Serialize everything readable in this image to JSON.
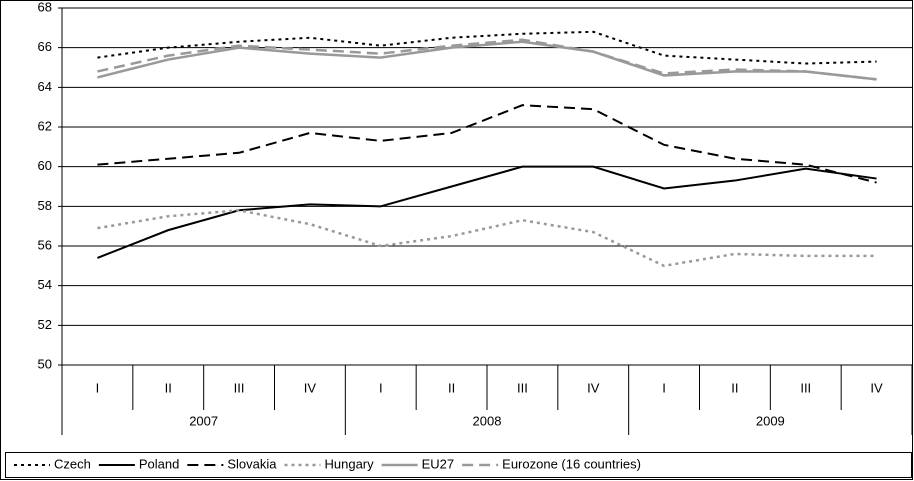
{
  "chart_data": {
    "type": "line",
    "categories": [
      "I",
      "II",
      "III",
      "IV",
      "I",
      "II",
      "III",
      "IV",
      "I",
      "II",
      "III",
      "IV"
    ],
    "x_groups": [
      "2007",
      "2008",
      "2009"
    ],
    "ylim": [
      50,
      68
    ],
    "yticks": [
      50,
      52,
      54,
      56,
      58,
      60,
      62,
      64,
      66,
      68
    ],
    "grid": true,
    "legend": "bottom",
    "series": [
      {
        "name": "Czech",
        "color": "#000000",
        "dash": "dotted",
        "values": [
          65.5,
          66.0,
          66.3,
          66.5,
          66.1,
          66.5,
          66.7,
          66.8,
          65.6,
          65.4,
          65.2,
          65.3
        ]
      },
      {
        "name": "Poland",
        "color": "#000000",
        "dash": "solid",
        "values": [
          55.4,
          56.8,
          57.8,
          58.1,
          58.0,
          59.0,
          60.0,
          60.0,
          58.9,
          59.3,
          59.9,
          59.4
        ]
      },
      {
        "name": "Slovakia",
        "color": "#000000",
        "dash": "long-dash",
        "values": [
          60.1,
          60.4,
          60.7,
          61.7,
          61.3,
          61.7,
          63.1,
          62.9,
          61.1,
          60.4,
          60.1,
          59.2
        ]
      },
      {
        "name": "Hungary",
        "color": "#999999",
        "dash": "dotted",
        "values": [
          56.9,
          57.5,
          57.8,
          57.1,
          56.0,
          56.5,
          57.3,
          56.7,
          55.0,
          55.6,
          55.5,
          55.5
        ]
      },
      {
        "name": "EU27",
        "color": "#999999",
        "dash": "solid",
        "values": [
          64.5,
          65.4,
          66.0,
          65.7,
          65.5,
          66.0,
          66.3,
          65.8,
          64.6,
          64.8,
          64.8,
          64.4
        ]
      },
      {
        "name": "Eurozone (16 countries)",
        "color": "#999999",
        "dash": "long-dash",
        "values": [
          64.8,
          65.6,
          66.1,
          65.9,
          65.7,
          66.1,
          66.4,
          65.8,
          64.7,
          64.9,
          64.8,
          64.4
        ]
      }
    ]
  }
}
